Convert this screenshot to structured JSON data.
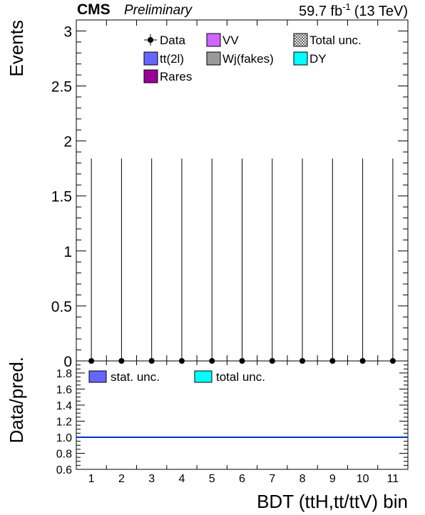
{
  "chart_data": {
    "type": "bar",
    "header": {
      "experiment": "CMS",
      "status": "Preliminary",
      "lumi_value": "59.7 fb",
      "lumi_exponent": "-1",
      "energy": "(13 TeV)"
    },
    "xlabel": "BDT (ttH,tt/ttV) bin",
    "categories": [
      "1",
      "2",
      "3",
      "4",
      "5",
      "6",
      "7",
      "8",
      "9",
      "10",
      "11"
    ],
    "main_panel": {
      "ylabel": "Events",
      "ylim": [
        0,
        3.1
      ],
      "yticks": [
        "0",
        "0.5",
        "1",
        "1.5",
        "2",
        "2.5",
        "3"
      ],
      "ytick_values": [
        0,
        0.5,
        1,
        1.5,
        2,
        2.5,
        3
      ],
      "data": {
        "name": "Data",
        "values": [
          0,
          0,
          0,
          0,
          0,
          0,
          0,
          0,
          0,
          0,
          0
        ],
        "err_up": [
          1.84,
          1.84,
          1.84,
          1.84,
          1.84,
          1.84,
          1.84,
          1.84,
          1.84,
          1.84,
          1.84
        ]
      },
      "legend": [
        {
          "key": "data",
          "label": "Data",
          "kind": "marker",
          "color": "#000000"
        },
        {
          "key": "vv",
          "label": "VV",
          "kind": "box",
          "color": "#cc66ff"
        },
        {
          "key": "total_unc",
          "label": "Total unc.",
          "kind": "hatch",
          "color": "#555555"
        },
        {
          "key": "tt2l",
          "label": "tt(2l)",
          "kind": "box",
          "color": "#6666ff"
        },
        {
          "key": "wj_fakes",
          "label": "Wj(fakes)",
          "kind": "box",
          "color": "#999999"
        },
        {
          "key": "dy",
          "label": "DY",
          "kind": "box",
          "color": "#00ffff"
        },
        {
          "key": "rares",
          "label": "Rares",
          "kind": "box",
          "color": "#990099"
        }
      ]
    },
    "ratio_panel": {
      "ylabel": "Data/pred.",
      "ylim": [
        0.6,
        1.95
      ],
      "yticks": [
        "0.6",
        "0.8",
        "1.0",
        "1.2",
        "1.4",
        "1.6",
        "1.8"
      ],
      "ytick_values": [
        0.6,
        0.8,
        1.0,
        1.2,
        1.4,
        1.6,
        1.8
      ],
      "reference_line": 1.0,
      "reference_color": "#0033cc",
      "legend": [
        {
          "key": "stat_unc",
          "label": "stat. unc.",
          "color": "#6666ff"
        },
        {
          "key": "total_unc",
          "label": "total unc.",
          "color": "#00ffff"
        }
      ]
    },
    "grid": false,
    "legend_position": "top"
  }
}
